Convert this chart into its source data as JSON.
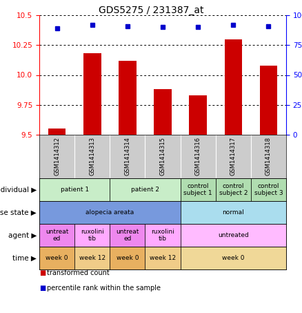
{
  "title": "GDS5275 / 231387_at",
  "samples": [
    "GSM1414312",
    "GSM1414313",
    "GSM1414314",
    "GSM1414315",
    "GSM1414316",
    "GSM1414317",
    "GSM1414318"
  ],
  "bar_values": [
    9.55,
    10.18,
    10.12,
    9.88,
    9.83,
    10.3,
    10.08
  ],
  "dot_values": [
    89,
    92,
    91,
    90,
    90,
    92,
    91
  ],
  "ylim_left": [
    9.5,
    10.5
  ],
  "ylim_right": [
    0,
    100
  ],
  "yticks_left": [
    9.5,
    9.75,
    10.0,
    10.25,
    10.5
  ],
  "yticks_right": [
    0,
    25,
    50,
    75,
    100
  ],
  "bar_color": "#cc0000",
  "dot_color": "#0000cc",
  "annotation_rows": [
    {
      "label": "individual",
      "cells": [
        {
          "text": "patient 1",
          "colspan": 2,
          "color": "#c8edc8"
        },
        {
          "text": "patient 2",
          "colspan": 2,
          "color": "#c8edc8"
        },
        {
          "text": "control\nsubject 1",
          "colspan": 1,
          "color": "#b0ddb0"
        },
        {
          "text": "control\nsubject 2",
          "colspan": 1,
          "color": "#b0ddb0"
        },
        {
          "text": "control\nsubject 3",
          "colspan": 1,
          "color": "#b0ddb0"
        }
      ]
    },
    {
      "label": "disease state",
      "cells": [
        {
          "text": "alopecia areata",
          "colspan": 4,
          "color": "#7799dd"
        },
        {
          "text": "normal",
          "colspan": 3,
          "color": "#aaddee"
        }
      ]
    },
    {
      "label": "agent",
      "cells": [
        {
          "text": "untreat\ned",
          "colspan": 1,
          "color": "#ee88ee"
        },
        {
          "text": "ruxolini\ntib",
          "colspan": 1,
          "color": "#ffaaff"
        },
        {
          "text": "untreat\ned",
          "colspan": 1,
          "color": "#ee88ee"
        },
        {
          "text": "ruxolini\ntib",
          "colspan": 1,
          "color": "#ffaaff"
        },
        {
          "text": "untreated",
          "colspan": 3,
          "color": "#ffbbff"
        }
      ]
    },
    {
      "label": "time",
      "cells": [
        {
          "text": "week 0",
          "colspan": 1,
          "color": "#e8b060"
        },
        {
          "text": "week 12",
          "colspan": 1,
          "color": "#f0cc88"
        },
        {
          "text": "week 0",
          "colspan": 1,
          "color": "#e8b060"
        },
        {
          "text": "week 12",
          "colspan": 1,
          "color": "#f0cc88"
        },
        {
          "text": "week 0",
          "colspan": 3,
          "color": "#f0d898"
        }
      ]
    }
  ],
  "legend": [
    {
      "color": "#cc0000",
      "label": "transformed count"
    },
    {
      "color": "#0000cc",
      "label": "percentile rank within the sample"
    }
  ],
  "sample_bg": "#cccccc",
  "chart_bg": "#ffffff"
}
